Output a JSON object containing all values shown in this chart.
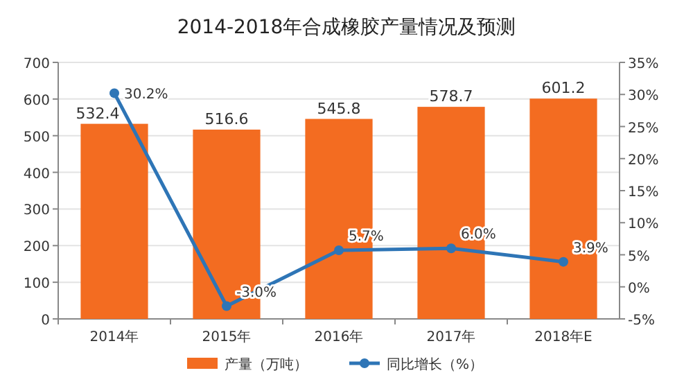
{
  "chart_data": {
    "type": "bar",
    "title": "2014-2018年合成橡胶产量情况及预测",
    "categories": [
      "2014年",
      "2015年",
      "2016年",
      "2017年",
      "2018年E"
    ],
    "series": [
      {
        "name": "产量（万吨）",
        "color": "#f36c21",
        "values": [
          532.4,
          516.6,
          545.8,
          578.7,
          601.2
        ],
        "value_labels": [
          "532.4",
          "516.6",
          "545.8",
          "578.7",
          "601.2"
        ]
      },
      {
        "name": "同比增长（%）",
        "type": "line",
        "axis": "y2",
        "color": "#2e75b6",
        "values": [
          30.2,
          -3.0,
          5.7,
          6.0,
          3.9
        ],
        "value_labels": [
          "30.2%",
          "-3.0%",
          "5.7%",
          "6.0%",
          "3.9%"
        ]
      }
    ],
    "ylim": [
      0,
      700
    ],
    "yticks": [
      0,
      100,
      200,
      300,
      400,
      500,
      600,
      700
    ],
    "y2lim": [
      -5,
      35
    ],
    "y2ticks": [
      {
        "value": -5,
        "label": "-5%"
      },
      {
        "value": 0,
        "label": "0%"
      },
      {
        "value": 5,
        "label": "5%"
      },
      {
        "value": 10,
        "label": "10%"
      },
      {
        "value": 15,
        "label": "15%"
      },
      {
        "value": 20,
        "label": "20%"
      },
      {
        "value": 25,
        "label": "25%"
      },
      {
        "value": 30,
        "label": "30%"
      },
      {
        "value": 35,
        "label": "35%"
      }
    ],
    "grid": "y",
    "legend": "bottom",
    "marker": "circle"
  }
}
